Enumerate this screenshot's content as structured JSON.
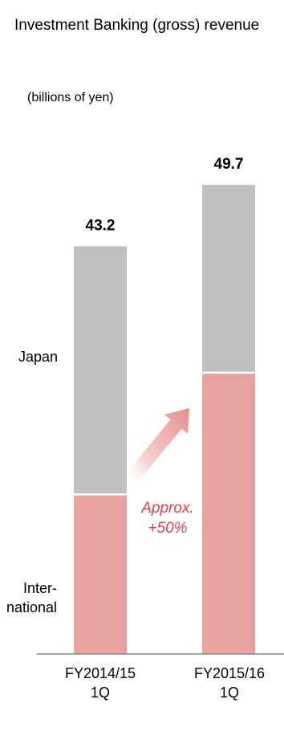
{
  "chart_data": {
    "type": "bar",
    "stacked": true,
    "title": "Investment Banking (gross) revenue",
    "unit_label": "(billions of yen)",
    "categories": [
      "FY2014/15\n1Q",
      "FY2015/16\n1Q"
    ],
    "series": [
      {
        "name": "Inter-\nnational",
        "color": "#e8a3a1",
        "values": [
          16.9,
          29.8
        ]
      },
      {
        "name": "Japan",
        "color": "#c0c0c0",
        "values": [
          26.3,
          19.9
        ]
      }
    ],
    "totals": [
      43.2,
      49.7
    ],
    "ylim": [
      0,
      52
    ],
    "annotation": {
      "text": "Approx.\n+50%",
      "color": "#e0434a"
    },
    "arrow_color": "#e8a3a1",
    "axis_color": "#888888"
  }
}
